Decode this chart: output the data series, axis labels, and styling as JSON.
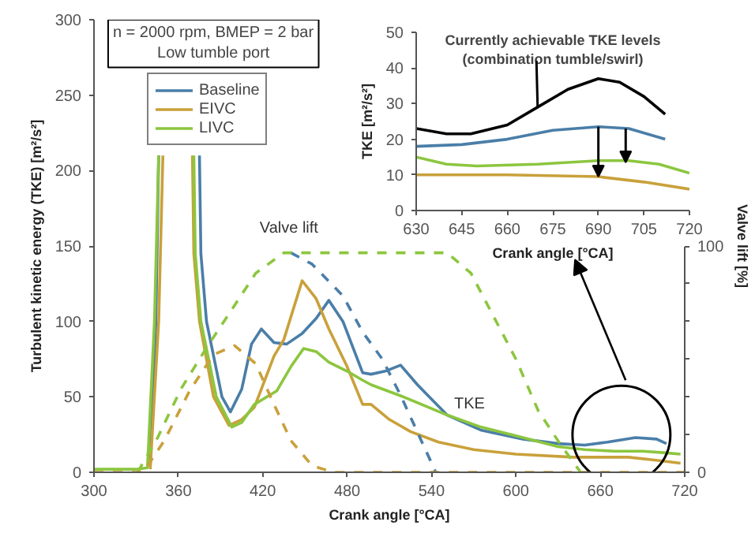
{
  "chart_data": [
    {
      "type": "line",
      "xlabel": "Crank angle [°CA]",
      "ylabel": "Turbulent kinetic energy (TKE) [m²/s²]",
      "y2label": "Valve lift [%]",
      "annotations": [
        "n = 2000 rpm, BMEP = 2 bar\nLow tumble port",
        "Valve lift",
        {
          "text": "TKE",
          "x": 567,
          "y": 39
        }
      ],
      "xlim": [
        300,
        720
      ],
      "xticks": [
        300,
        360,
        420,
        480,
        540,
        600,
        660,
        720
      ],
      "ylim": [
        0,
        300
      ],
      "yticks": [
        0,
        50,
        100,
        150,
        200,
        250,
        300
      ],
      "y2lim": [
        0,
        200
      ],
      "y2ticks": [
        0,
        {
          "value": 16.7,
          "label": null
        },
        {
          "value": 33.3,
          "label": null
        },
        {
          "value": 50,
          "label": null
        },
        {
          "value": 66.7,
          "label": null
        },
        {
          "value": 83.3,
          "label": null
        },
        100
      ],
      "legend": "top left",
      "series": [
        {
          "name": "Baseline",
          "color": "#4a7ea8",
          "x": [
            340,
            344,
            346,
            356,
            375,
            376,
            380,
            391,
            397,
            405,
            412,
            419,
            428,
            437,
            448,
            458,
            467,
            477,
            491,
            497,
            507,
            518,
            530,
            551,
            575,
            605,
            630,
            649,
            665,
            685,
            700,
            707
          ],
          "values": [
            5,
            100,
            210,
            null,
            210,
            145,
            100,
            50,
            40,
            55,
            85,
            95,
            86,
            85,
            92,
            102,
            114,
            100,
            66,
            65,
            67,
            71,
            58,
            38,
            28,
            22,
            19,
            18,
            20,
            23,
            22,
            19
          ]
        },
        {
          "name": "EIVC",
          "color": "#c9a13b",
          "x": [
            340,
            346,
            349,
            358,
            370,
            371,
            375,
            385,
            396,
            405,
            414,
            428,
            435,
            448,
            458,
            467,
            480,
            491,
            497,
            510,
            525,
            545,
            570,
            600,
            641,
            680,
            700,
            717
          ],
          "values": [
            2,
            100,
            210,
            null,
            210,
            145,
            100,
            50,
            31,
            35,
            43,
            77,
            88,
            127,
            115,
            95,
            70,
            45,
            45,
            35,
            27,
            20,
            15,
            12,
            10,
            10,
            8,
            6
          ]
        },
        {
          "name": "LIVC",
          "color": "#8cc63f",
          "x": [
            300,
            330,
            338,
            343,
            346,
            358,
            371,
            372,
            376,
            387,
            398,
            405,
            414,
            430,
            440,
            449,
            458,
            467,
            480,
            491,
            497,
            520,
            551,
            575,
            605,
            630,
            649,
            670,
            690,
            705,
            717
          ],
          "values": [
            2,
            2,
            3,
            100,
            210,
            null,
            210,
            145,
            100,
            50,
            30,
            33,
            45,
            54,
            70,
            82,
            80,
            73,
            67,
            61,
            58,
            50,
            38,
            30,
            23,
            17,
            15,
            14,
            14,
            13,
            12
          ]
        },
        {
          "color": "#4a7ea8",
          "axis": "y2",
          "line_style": "dashed",
          "x": [
            440,
            455,
            477,
            491,
            505,
            518,
            543
          ],
          "values": [
            97,
            92,
            78,
            62,
            50,
            34,
            0
          ]
        },
        {
          "color": "#8cc63f",
          "axis": "y2",
          "line_style": "dashed",
          "x": [
            331,
            345,
            362,
            380,
            396,
            415,
            435,
            455,
            500,
            551,
            568,
            584,
            600,
            616,
            632,
            646
          ],
          "values": [
            0,
            15,
            37,
            55,
            70,
            88,
            97,
            97,
            97,
            97,
            88,
            69,
            50,
            27,
            12,
            0
          ]
        },
        {
          "color": "#c9a13b",
          "axis": "y2",
          "line_style": "dashed",
          "x": [
            300,
            335,
            350,
            368,
            385,
            400,
            415,
            428,
            440,
            455,
            470,
            720
          ],
          "values": [
            0,
            0,
            14,
            36,
            52,
            56,
            48,
            30,
            14,
            3,
            0,
            0
          ]
        }
      ]
    },
    {
      "type": "line",
      "xlabel": "Crank angle [°CA]",
      "ylabel": "TKE [m²/s²]",
      "xlim": [
        630,
        720
      ],
      "xticks": [
        630,
        645,
        660,
        675,
        690,
        705,
        720
      ],
      "ylim": [
        0,
        50
      ],
      "yticks": [
        0,
        10,
        20,
        30,
        40,
        50
      ],
      "series": [
        {
          "name": "Currently achievable TKE levels\n(combination tumble/swirl)",
          "color": "#000000",
          "x": [
            630,
            640,
            648,
            660,
            670,
            680,
            690,
            697,
            705,
            712
          ],
          "values": [
            23,
            21.5,
            21.5,
            24,
            29,
            34,
            37,
            36,
            32,
            27
          ]
        },
        {
          "color": "#4a7ea8",
          "x": [
            630,
            645,
            660,
            675,
            690,
            700,
            712
          ],
          "values": [
            18,
            18.5,
            20,
            22.5,
            23.5,
            23,
            20
          ]
        },
        {
          "color": "#8cc63f",
          "x": [
            630,
            640,
            650,
            670,
            690,
            700,
            710,
            720
          ],
          "values": [
            15,
            13,
            12.5,
            13,
            14,
            14,
            13,
            10.5
          ]
        },
        {
          "color": "#c9a13b",
          "x": [
            630,
            660,
            690,
            705,
            720
          ],
          "values": [
            10,
            10,
            9.5,
            8,
            6
          ]
        }
      ]
    }
  ]
}
